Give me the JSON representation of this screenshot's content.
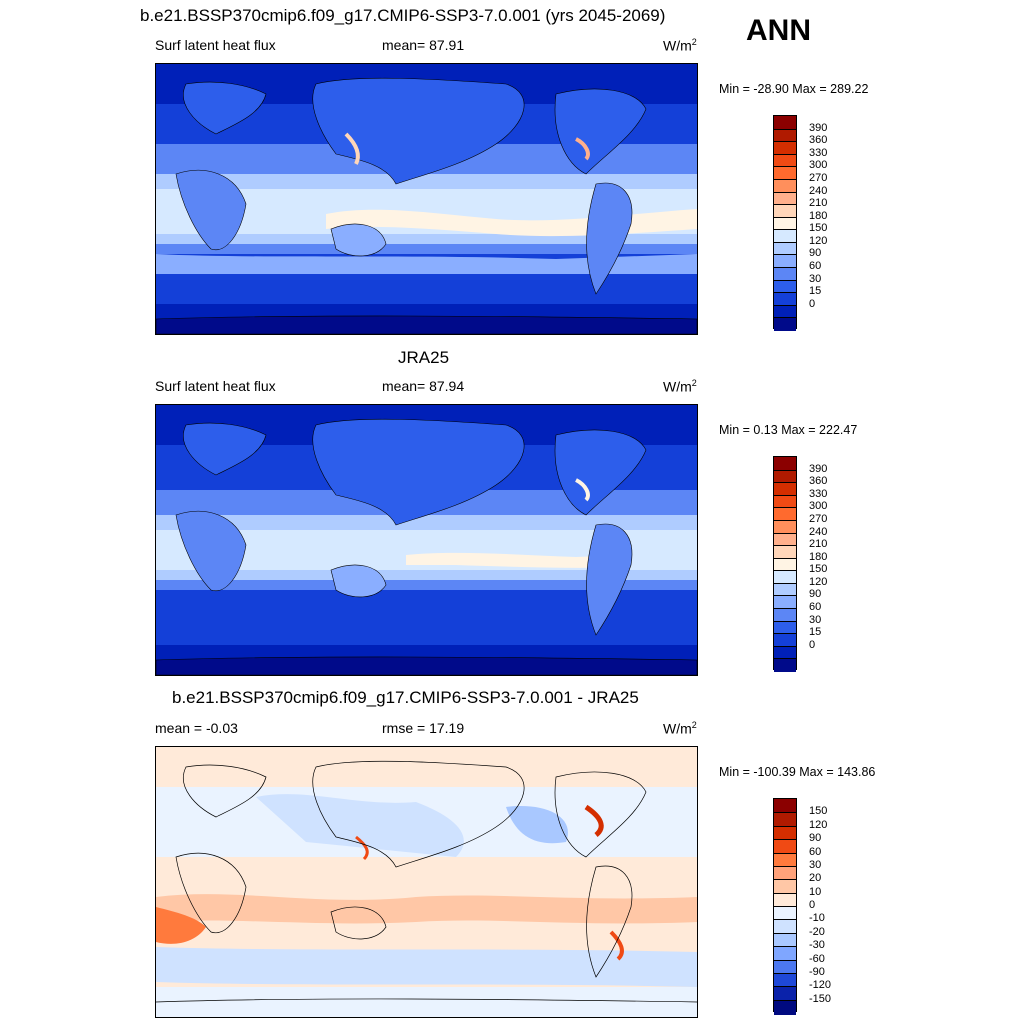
{
  "header": {
    "title": "b.e21.BSSP370cmip6.f09_g17.CMIP6-SSP3-7.0.001 (yrs 2045-2069)",
    "season": "ANN"
  },
  "panels": [
    {
      "title": "",
      "left_label": "Surf latent heat flux",
      "center_label": "mean=  87.91",
      "units": "W/m",
      "units_sup": "2",
      "minmax": "Min = -28.90 Max = 289.22",
      "colorbar": {
        "labels": [
          "390",
          "360",
          "330",
          "300",
          "270",
          "240",
          "210",
          "180",
          "150",
          "120",
          "90",
          "60",
          "30",
          "15",
          "0"
        ],
        "colors": [
          "#8B0000",
          "#B01A00",
          "#D42E00",
          "#F04A14",
          "#FF6A2E",
          "#FF8F5C",
          "#FFB08C",
          "#FFD6B9",
          "#FFF4E4",
          "#D6E9FF",
          "#AFCCFF",
          "#8AAEFF",
          "#5C86F5",
          "#2D5EEB",
          "#1440D8",
          "#0020B8",
          "#000A8A"
        ]
      }
    },
    {
      "title": "JRA25",
      "left_label": "Surf latent heat flux",
      "center_label": "mean=  87.94",
      "units": "W/m",
      "units_sup": "2",
      "minmax": "Min =   0.13 Max = 222.47",
      "colorbar": {
        "labels": [
          "390",
          "360",
          "330",
          "300",
          "270",
          "240",
          "210",
          "180",
          "150",
          "120",
          "90",
          "60",
          "30",
          "15",
          "0"
        ],
        "colors": [
          "#8B0000",
          "#B01A00",
          "#D42E00",
          "#F04A14",
          "#FF6A2E",
          "#FF8F5C",
          "#FFB08C",
          "#FFD6B9",
          "#FFF4E4",
          "#D6E9FF",
          "#AFCCFF",
          "#8AAEFF",
          "#5C86F5",
          "#2D5EEB",
          "#1440D8",
          "#0020B8",
          "#000A8A"
        ]
      }
    },
    {
      "title": "b.e21.BSSP370cmip6.f09_g17.CMIP6-SSP3-7.0.001 - JRA25",
      "left_label": "mean =  -0.03",
      "center_label": "rmse =  17.19",
      "units": "W/m",
      "units_sup": "2",
      "minmax": "Min = -100.39 Max = 143.86",
      "colorbar": {
        "labels": [
          "150",
          "120",
          "90",
          "60",
          "30",
          "20",
          "10",
          "0",
          "-10",
          "-20",
          "-30",
          "-60",
          "-90",
          "-120",
          "-150"
        ],
        "colors": [
          "#8B0000",
          "#B01A00",
          "#D42E00",
          "#F04A14",
          "#FF7A3D",
          "#FFA27A",
          "#FFC7A6",
          "#FFEAD9",
          "#EAF3FF",
          "#CFE2FF",
          "#A9C8FF",
          "#7FA6FF",
          "#4C78F0",
          "#1E48D8",
          "#0A22AA",
          "#000A80"
        ]
      }
    }
  ]
}
